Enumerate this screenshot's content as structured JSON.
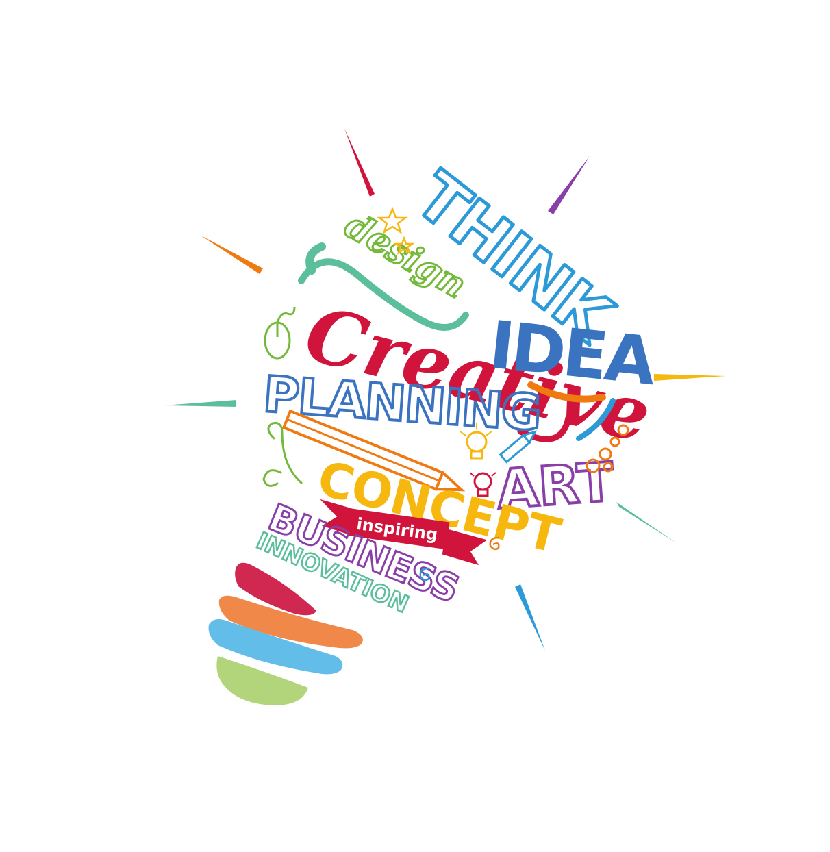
{
  "illustration": {
    "words": {
      "think": "THINK",
      "design": "design",
      "idea": "IDEA",
      "creative": "Creative",
      "planning": "PLANNING",
      "art": "ART",
      "concept": "CONCEPT",
      "inspiring": "inspiring",
      "business": "BUSINESS",
      "innovation": "INNOVATION"
    },
    "icons": [
      "star-icon",
      "mouse-icon",
      "pencil-icon",
      "lightbulb-icon",
      "crayon-icon",
      "swirl-icon",
      "bubbles-icon"
    ],
    "colors": {
      "red": "#d0143c",
      "blue": "#2d9ad8",
      "dark_blue": "#3a74c0",
      "green": "#73b93a",
      "yellow": "#f6b70f",
      "orange": "#f07a12",
      "purple": "#8a3fa8",
      "teal": "#5bbf9c",
      "light_green": "#b2d47a",
      "sky": "#62bde9",
      "peach": "#f0884a",
      "crimson": "#d02850"
    }
  }
}
